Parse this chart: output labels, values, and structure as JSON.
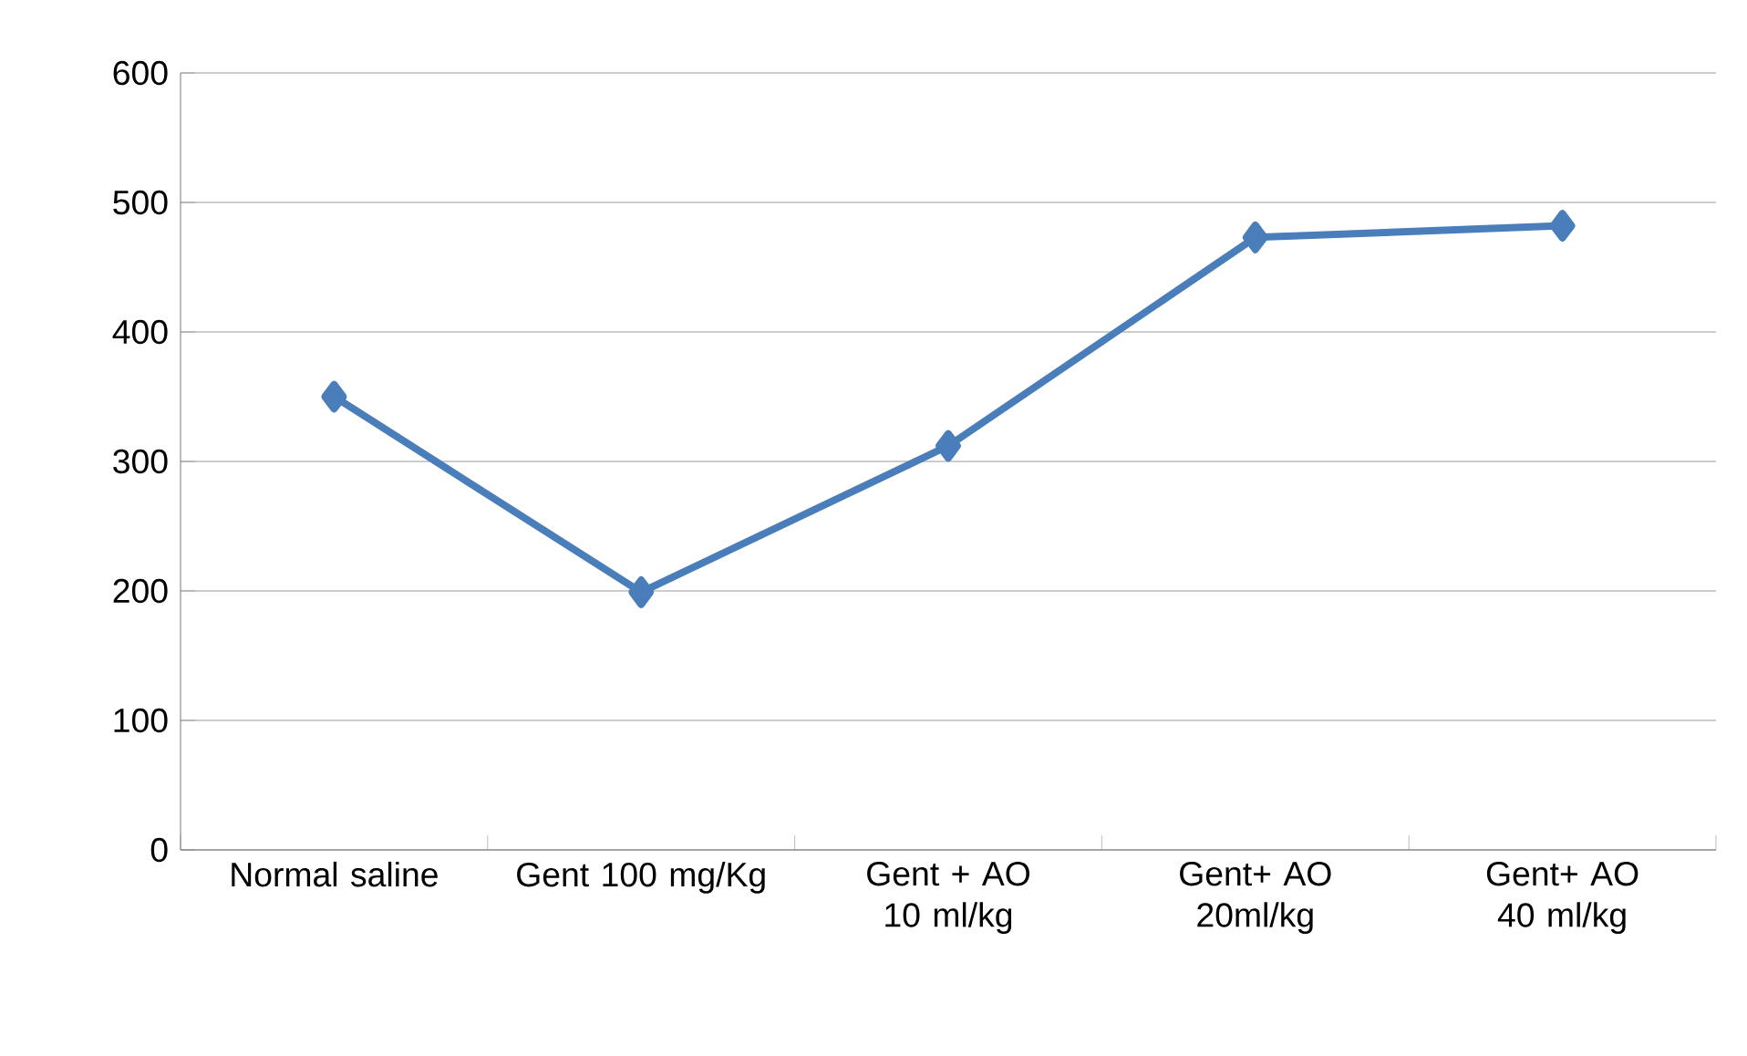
{
  "chart_data": {
    "type": "line",
    "categories": [
      "Normal saline",
      "Gent 100 mg/Kg",
      "Gent + AO 10 ml/kg",
      "Gent+ AO 20ml/kg",
      "Gent+ AO 40 ml/kg"
    ],
    "values": [
      350,
      199,
      312,
      473,
      482
    ],
    "color": "#4a7ebb",
    "ylim": [
      0,
      600
    ],
    "yticks": [
      0,
      100,
      200,
      300,
      400,
      500,
      600
    ],
    "grid": "y",
    "marker": "diamond",
    "line_style": "solid"
  }
}
